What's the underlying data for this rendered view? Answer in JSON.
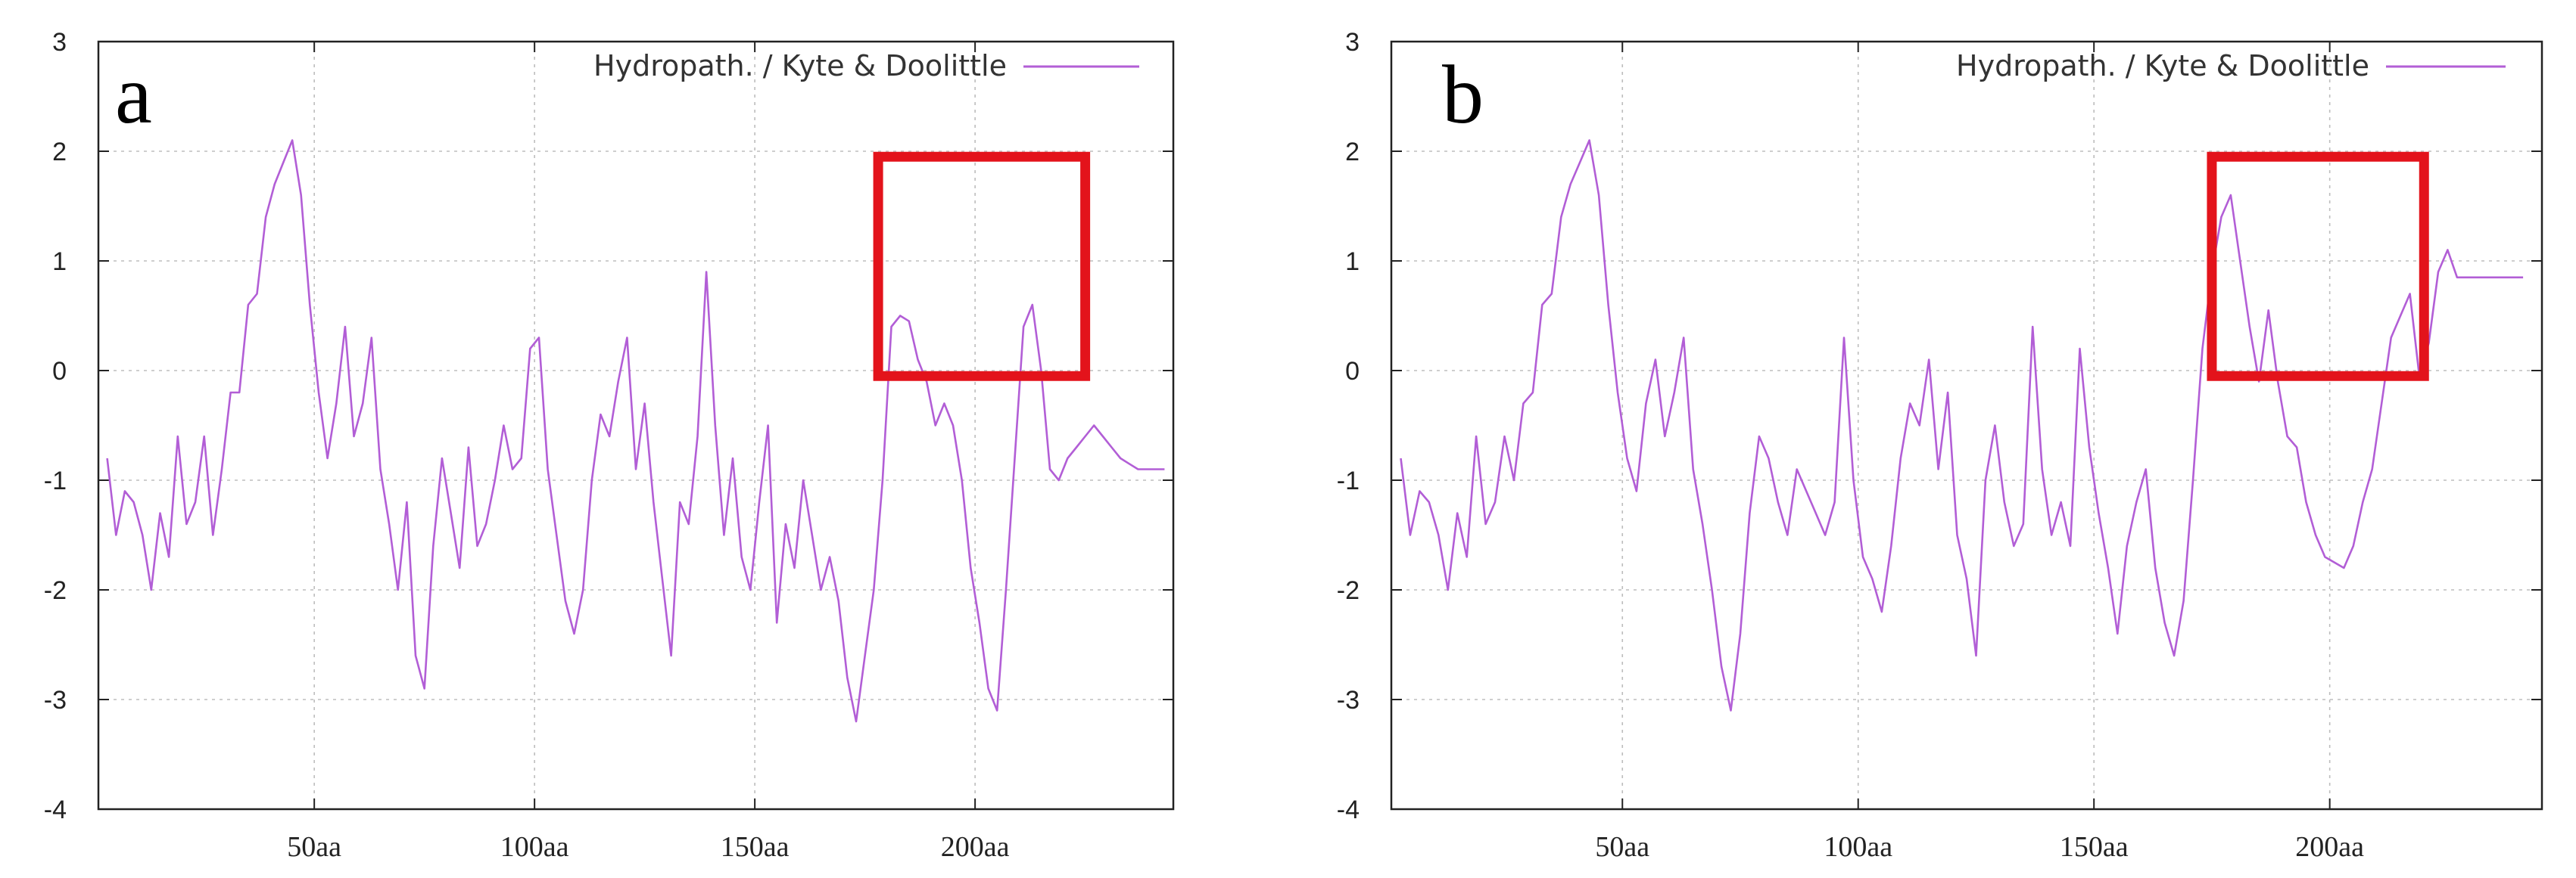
{
  "colors": {
    "series": "#b25ed6",
    "highlight": "#e3131b",
    "grid": "#bdbdbd",
    "axis": "#222222"
  },
  "chart_data": [
    {
      "type": "line",
      "panel_label": "a",
      "legend": {
        "position": "top-right",
        "entries": [
          "Hydropath. / Kyte & Doolittle"
        ]
      },
      "xlim": [
        1,
        245
      ],
      "ylim": [
        -4,
        3
      ],
      "x_ticks": [
        50,
        100,
        150,
        200
      ],
      "x_tick_labels": [
        "50aa",
        "100aa",
        "150aa",
        "200aa"
      ],
      "y_ticks": [
        -4,
        -3,
        -2,
        -1,
        0,
        1,
        2,
        3
      ],
      "y_tick_labels": [
        "-4",
        "-3",
        "-2",
        "-1",
        "0",
        "1",
        "2",
        "3"
      ],
      "grid": true,
      "highlight_box": {
        "x": [
          178,
          225
        ],
        "y": [
          -0.05,
          1.95
        ]
      },
      "series": [
        {
          "name": "Hydropath. / Kyte & Doolittle",
          "x": [
            3,
            5,
            7,
            9,
            11,
            13,
            15,
            17,
            19,
            21,
            23,
            25,
            27,
            29,
            31,
            33,
            35,
            37,
            39,
            41,
            43,
            45,
            47,
            49,
            51,
            53,
            55,
            57,
            59,
            61,
            63,
            65,
            67,
            69,
            71,
            73,
            75,
            77,
            79,
            81,
            83,
            85,
            87,
            89,
            91,
            93,
            95,
            97,
            99,
            101,
            103,
            105,
            107,
            109,
            111,
            113,
            115,
            117,
            119,
            121,
            123,
            125,
            127,
            129,
            131,
            133,
            135,
            137,
            139,
            141,
            143,
            145,
            147,
            149,
            151,
            153,
            155,
            157,
            159,
            161,
            163,
            165,
            167,
            169,
            171,
            173,
            175,
            177,
            179,
            181,
            183,
            185,
            187,
            189,
            191,
            193,
            195,
            197,
            199,
            201,
            203,
            205,
            207,
            209,
            211,
            213,
            215,
            217,
            219,
            221,
            223,
            225,
            227,
            229,
            231,
            233,
            235,
            237,
            239,
            241,
            243
          ],
          "values": [
            -0.8,
            -1.5,
            -1.1,
            -1.2,
            -1.5,
            -2.0,
            -1.3,
            -1.7,
            -0.6,
            -1.4,
            -1.2,
            -0.6,
            -1.5,
            -0.9,
            -0.2,
            -0.2,
            0.6,
            0.7,
            1.4,
            1.7,
            1.9,
            2.1,
            1.6,
            0.6,
            -0.2,
            -0.8,
            -0.3,
            0.4,
            -0.6,
            -0.3,
            0.3,
            -0.9,
            -1.4,
            -2.0,
            -1.2,
            -2.6,
            -2.9,
            -1.6,
            -0.8,
            -1.3,
            -1.8,
            -0.7,
            -1.6,
            -1.4,
            -1.0,
            -0.5,
            -0.9,
            -0.8,
            0.2,
            0.3,
            -0.9,
            -1.5,
            -2.1,
            -2.4,
            -2.0,
            -1.0,
            -0.4,
            -0.6,
            -0.1,
            0.3,
            -0.9,
            -0.3,
            -1.2,
            -1.9,
            -2.6,
            -1.2,
            -1.4,
            -0.6,
            0.9,
            -0.5,
            -1.5,
            -0.8,
            -1.7,
            -2.0,
            -1.2,
            -0.5,
            -2.3,
            -1.4,
            -1.8,
            -1.0,
            -1.5,
            -2.0,
            -1.7,
            -2.1,
            -2.8,
            -3.2,
            -2.6,
            -2.0,
            -1.0,
            0.4,
            0.5,
            0.45,
            0.1,
            -0.1,
            -0.5,
            -0.3,
            -0.5,
            -1.0,
            -1.8,
            -2.3,
            -2.9,
            -3.1,
            -2.0,
            -0.8,
            0.4,
            0.6,
            0.0,
            -0.9,
            -1.0,
            -0.8,
            -0.7,
            -0.6,
            -0.5,
            -0.6,
            -0.7,
            -0.8,
            -0.85,
            -0.9,
            -0.9,
            -0.9,
            -0.9
          ]
        }
      ]
    },
    {
      "type": "line",
      "panel_label": "b",
      "legend": {
        "position": "top-right",
        "entries": [
          "Hydropath. / Kyte & Doolittle"
        ]
      },
      "xlim": [
        1,
        245
      ],
      "ylim": [
        -4,
        3
      ],
      "x_ticks": [
        50,
        100,
        150,
        200
      ],
      "x_tick_labels": [
        "50aa",
        "100aa",
        "150aa",
        "200aa"
      ],
      "y_ticks": [
        -4,
        -3,
        -2,
        -1,
        0,
        1,
        2,
        3
      ],
      "y_tick_labels": [
        "-4",
        "-3",
        "-2",
        "-1",
        "0",
        "1",
        "2",
        "3"
      ],
      "grid": true,
      "highlight_box": {
        "x": [
          175,
          220
        ],
        "y": [
          -0.05,
          1.95
        ]
      },
      "series": [
        {
          "name": "Hydropath. / Kyte & Doolittle",
          "x": [
            3,
            5,
            7,
            9,
            11,
            13,
            15,
            17,
            19,
            21,
            23,
            25,
            27,
            29,
            31,
            33,
            35,
            37,
            39,
            41,
            43,
            45,
            47,
            49,
            51,
            53,
            55,
            57,
            59,
            61,
            63,
            65,
            67,
            69,
            71,
            73,
            75,
            77,
            79,
            81,
            83,
            85,
            87,
            89,
            91,
            93,
            95,
            97,
            99,
            101,
            103,
            105,
            107,
            109,
            111,
            113,
            115,
            117,
            119,
            121,
            123,
            125,
            127,
            129,
            131,
            133,
            135,
            137,
            139,
            141,
            143,
            145,
            147,
            149,
            151,
            153,
            155,
            157,
            159,
            161,
            163,
            165,
            167,
            169,
            171,
            173,
            175,
            177,
            179,
            181,
            183,
            185,
            187,
            189,
            191,
            193,
            195,
            197,
            199,
            201,
            203,
            205,
            207,
            209,
            211,
            213,
            215,
            217,
            219,
            221,
            223,
            225,
            227,
            229,
            231,
            233,
            235,
            237,
            239,
            241
          ],
          "values": [
            -0.8,
            -1.5,
            -1.1,
            -1.2,
            -1.5,
            -2.0,
            -1.3,
            -1.7,
            -0.6,
            -1.4,
            -1.2,
            -0.6,
            -1.0,
            -0.3,
            -0.2,
            0.6,
            0.7,
            1.4,
            1.7,
            1.9,
            2.1,
            1.6,
            0.6,
            -0.2,
            -0.8,
            -1.1,
            -0.3,
            0.1,
            -0.6,
            -0.2,
            0.3,
            -0.9,
            -1.4,
            -2.0,
            -2.7,
            -3.1,
            -2.4,
            -1.3,
            -0.6,
            -0.8,
            -1.2,
            -1.5,
            -0.9,
            -1.1,
            -1.3,
            -1.5,
            -1.2,
            0.3,
            -1.0,
            -1.7,
            -1.9,
            -2.2,
            -1.6,
            -0.8,
            -0.3,
            -0.5,
            0.1,
            -0.9,
            -0.2,
            -1.5,
            -1.9,
            -2.6,
            -1.0,
            -0.5,
            -1.2,
            -1.6,
            -1.4,
            0.4,
            -0.9,
            -1.5,
            -1.2,
            -1.6,
            0.2,
            -0.7,
            -1.3,
            -1.8,
            -2.4,
            -1.6,
            -1.2,
            -0.9,
            -1.8,
            -2.3,
            -2.6,
            -2.1,
            -1.0,
            0.2,
            0.9,
            1.4,
            1.6,
            1.0,
            0.4,
            -0.1,
            0.55,
            -0.1,
            -0.6,
            -0.7,
            -1.2,
            -1.5,
            -1.7,
            -1.75,
            -1.8,
            -1.6,
            -1.2,
            -0.9,
            -0.3,
            0.3,
            0.5,
            0.7,
            -0.05,
            0.25,
            0.9,
            1.1,
            0.85,
            0.85,
            0.85,
            0.85,
            0.85,
            0.85,
            0.85,
            0.85
          ]
        }
      ]
    }
  ]
}
